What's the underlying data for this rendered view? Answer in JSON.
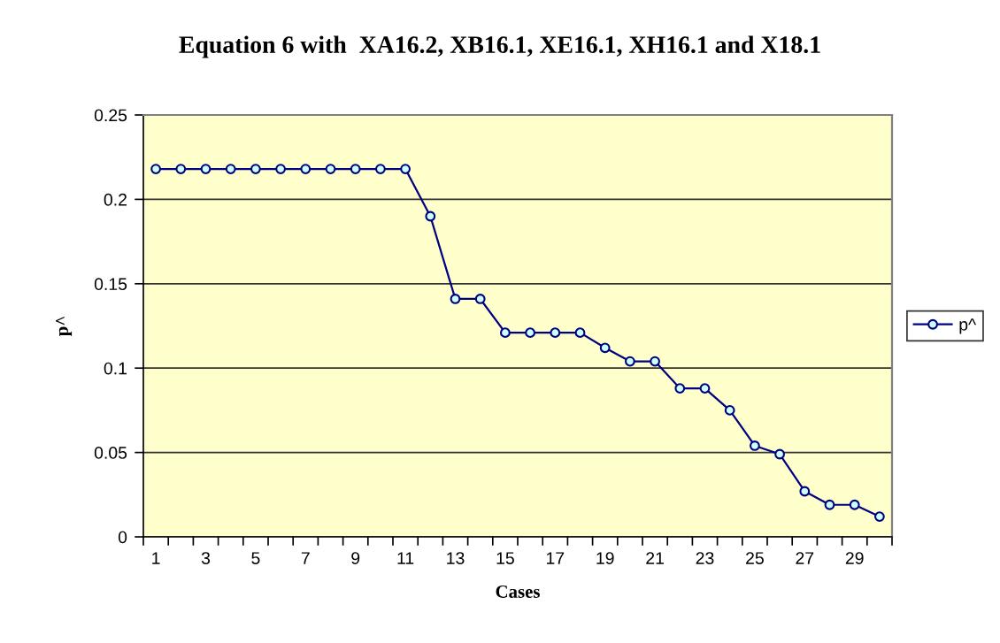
{
  "chart_data": {
    "type": "line",
    "title": "Equation 6 with  XA16.2, XB16.1, XE16.1, XH16.1 and X18.1",
    "xlabel": "Cases",
    "ylabel": "p^",
    "categories": [
      "1",
      null,
      "3",
      null,
      "5",
      null,
      "7",
      null,
      "9",
      null,
      "11",
      null,
      "13",
      null,
      "15",
      null,
      "17",
      null,
      "19",
      null,
      "21",
      null,
      "23",
      null,
      "25",
      null,
      "27",
      null,
      "29",
      null
    ],
    "series": [
      {
        "name": "p^",
        "color": "#000080",
        "values": [
          0.218,
          0.218,
          0.218,
          0.218,
          0.218,
          0.218,
          0.218,
          0.218,
          0.218,
          0.218,
          0.218,
          0.19,
          0.141,
          0.141,
          0.121,
          0.121,
          0.121,
          0.121,
          0.112,
          0.104,
          0.104,
          0.088,
          0.088,
          0.075,
          0.054,
          0.049,
          0.027,
          0.019,
          0.019,
          0.012
        ]
      }
    ],
    "ylim": [
      0,
      0.25
    ],
    "yticks": [
      0,
      0.05,
      0.1,
      0.15,
      0.2,
      0.25
    ],
    "grid": "y",
    "legend": "right",
    "marker": "circle",
    "line_style": "solid"
  }
}
